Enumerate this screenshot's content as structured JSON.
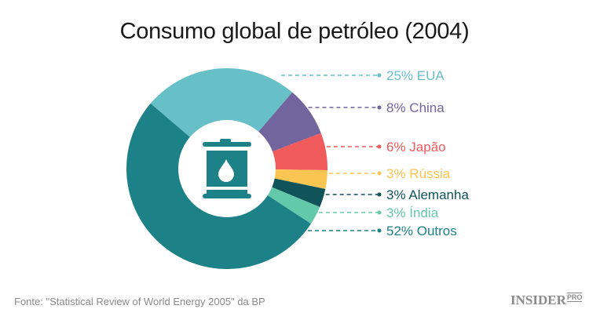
{
  "chart_data": {
    "type": "pie",
    "donut": true,
    "title": "Consumo global de petróleo (2004)",
    "center_icon": "oil-barrel-icon",
    "slices": [
      {
        "label": "25% EUA",
        "value": 25,
        "color": "#67bfc8"
      },
      {
        "label": "8% China",
        "value": 8,
        "color": "#72659d"
      },
      {
        "label": "6% Japão",
        "value": 6,
        "color": "#f05a5b"
      },
      {
        "label": "3% Rússia",
        "value": 3,
        "color": "#fbc552"
      },
      {
        "label": "3% Alemanha",
        "value": 3,
        "color": "#10545a"
      },
      {
        "label": "3% Índia",
        "value": 3,
        "color": "#63c9aa"
      },
      {
        "label": "52% Outros",
        "value": 52,
        "color": "#1c8288"
      }
    ]
  },
  "footer": {
    "source": "Fonte: \"Statistical Review of World Energy 2005\" da BP",
    "logo": "INSIDER",
    "logo_suffix": "PRO"
  }
}
